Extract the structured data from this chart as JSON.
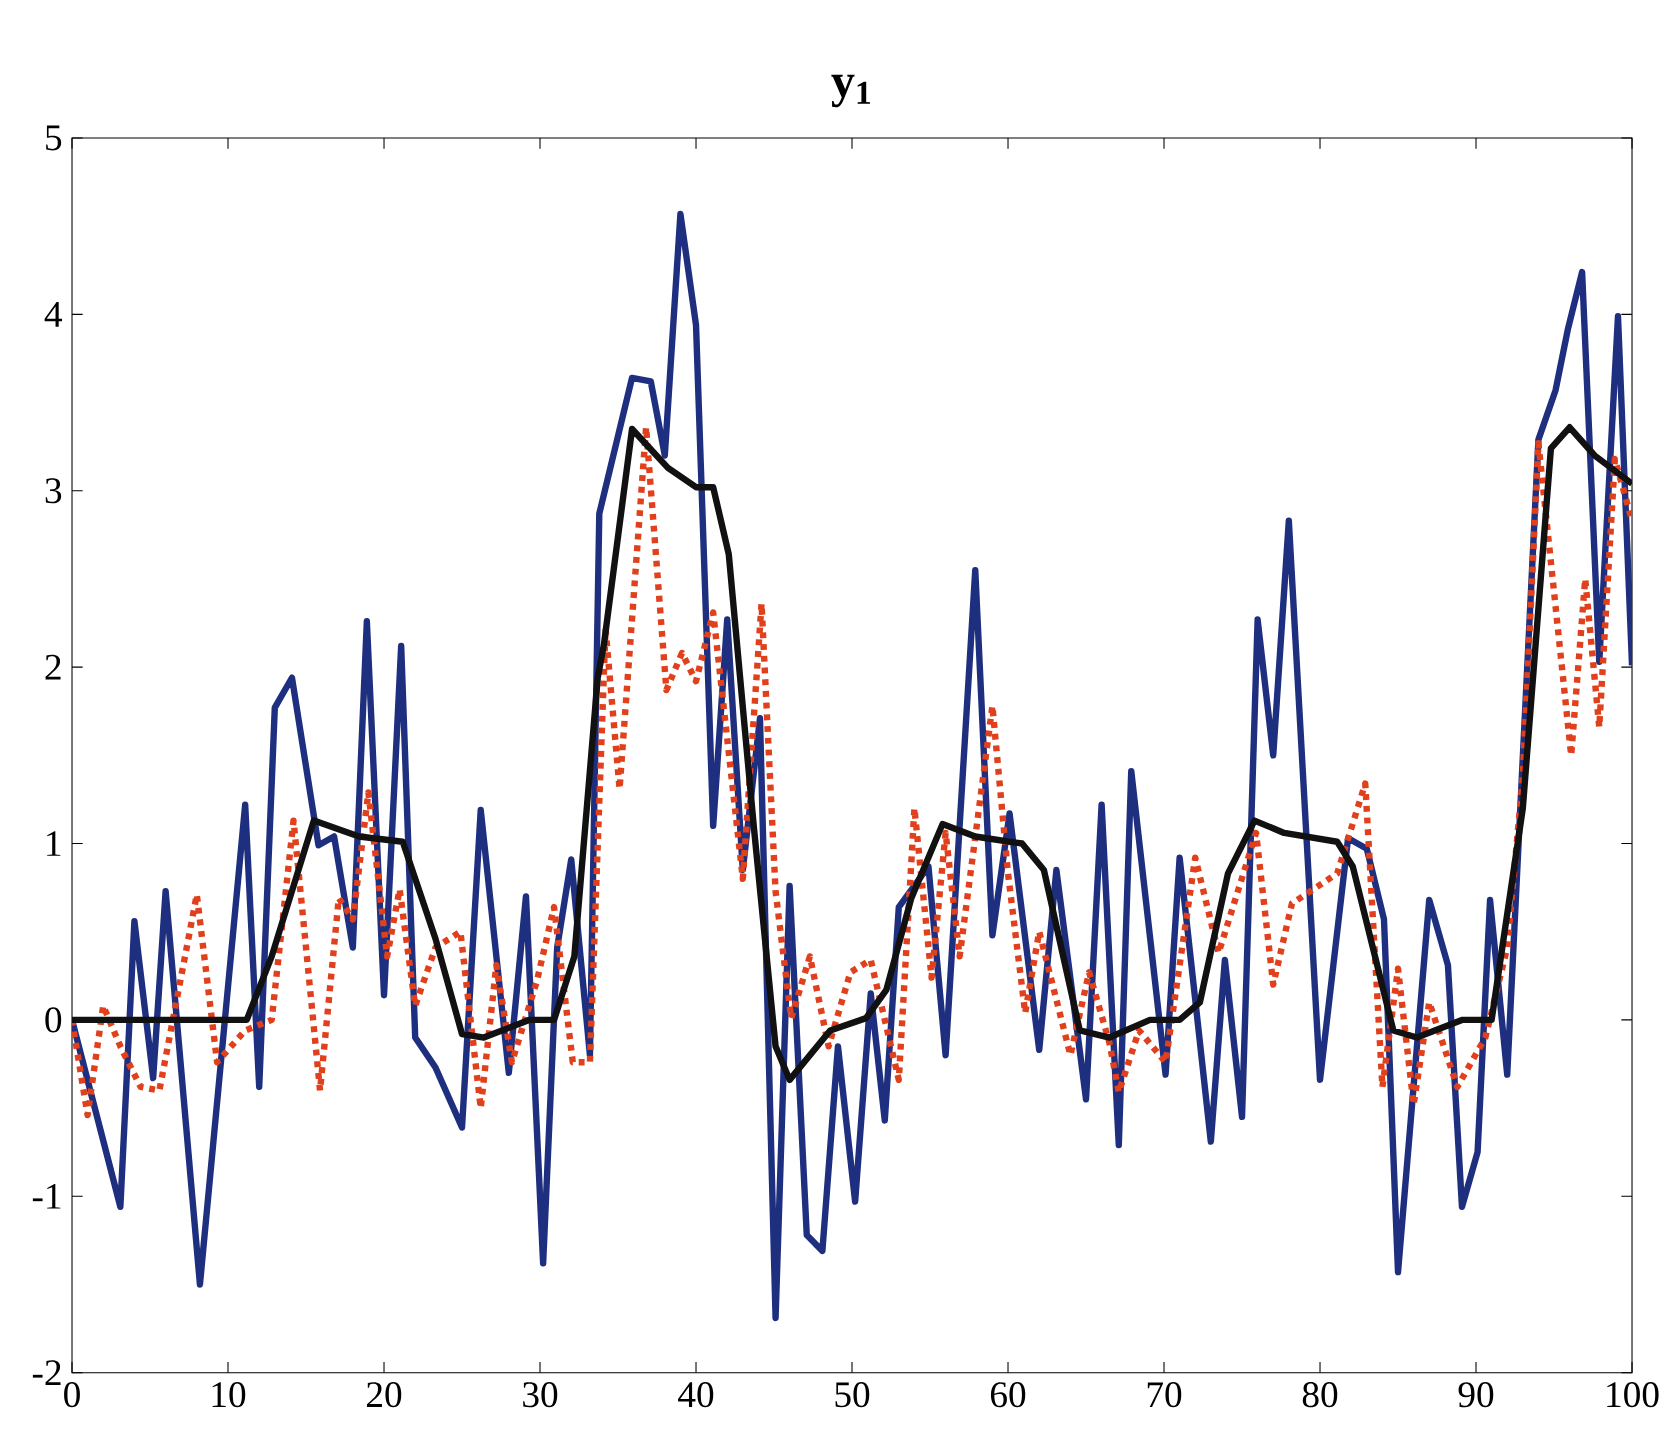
{
  "chart_data": {
    "type": "line",
    "title": "y$_{1}$",
    "xlim": [
      0,
      100
    ],
    "ylim": [
      -2,
      5
    ],
    "xticks": [
      0,
      10,
      20,
      30,
      40,
      50,
      60,
      70,
      80,
      90,
      100
    ],
    "yticks": [
      -2,
      -1,
      0,
      1,
      2,
      3,
      4,
      5
    ],
    "marker": "none",
    "series": [
      {
        "color": "#1f2f7f",
        "line_style": "solid",
        "x": [
          0,
          3.1,
          4,
          5.2,
          6,
          8.2,
          11.1,
          12,
          13,
          14.1,
          15.8,
          16.8,
          18,
          18.9,
          20,
          21.1,
          22,
          23.3,
          25,
          26.2,
          28,
          29.1,
          30.2,
          31.1,
          32,
          33.2,
          33.8,
          35.9,
          37.1,
          38,
          39,
          40,
          41.1,
          42,
          43,
          44.1,
          45.1,
          46,
          47.1,
          48.1,
          49.1,
          50.2,
          51.2,
          52.1,
          53,
          54.9,
          56,
          57.9,
          59,
          60.1,
          62,
          63.1,
          65,
          66,
          67.1,
          67.9,
          70.1,
          71,
          73,
          73.9,
          75,
          76,
          77,
          78,
          80,
          81.8,
          83,
          84.1,
          85,
          87,
          88.2,
          89.1,
          90.1,
          90.9,
          92,
          94,
          95.1,
          95.9,
          96.8,
          97.9,
          99.1,
          100
        ],
        "values": [
          0,
          -1.06,
          0.56,
          -0.33,
          0.73,
          -1.5,
          1.22,
          -0.38,
          1.77,
          1.94,
          0.99,
          1.04,
          0.41,
          2.26,
          0.14,
          2.12,
          -0.1,
          -0.27,
          -0.61,
          1.19,
          -0.3,
          0.7,
          -1.38,
          0.41,
          0.91,
          -0.2,
          2.87,
          3.64,
          3.62,
          3.2,
          4.57,
          3.94,
          1.1,
          2.27,
          0.85,
          1.71,
          -1.69,
          0.76,
          -1.22,
          -1.31,
          -0.15,
          -1.03,
          0.15,
          -0.57,
          0.64,
          0.87,
          -0.2,
          2.55,
          0.48,
          1.17,
          -0.17,
          0.85,
          -0.45,
          1.22,
          -0.71,
          1.41,
          -0.31,
          0.92,
          -0.69,
          0.34,
          -0.55,
          2.27,
          1.5,
          2.83,
          -0.34,
          1.03,
          0.97,
          0.57,
          -1.43,
          0.68,
          0.31,
          -1.06,
          -0.75,
          0.68,
          -0.31,
          3.29,
          3.57,
          3.92,
          4.24,
          2.03,
          3.99,
          2.01
        ]
      },
      {
        "color": "#e0401c",
        "line_style": "dotted",
        "x": [
          0,
          1,
          2,
          3.1,
          4.4,
          5.6,
          8,
          9.3,
          11.1,
          12.8,
          14.2,
          15.9,
          17.1,
          18,
          19,
          20.2,
          21,
          22,
          23.3,
          24.9,
          26.2,
          27.2,
          28.2,
          29.8,
          30.9,
          32.1,
          33.2,
          34.2,
          35.1,
          36.8,
          38.1,
          39.1,
          40,
          41.1,
          43,
          44.2,
          45.1,
          46.1,
          47.3,
          48.5,
          49.9,
          51.2,
          53,
          54,
          55.1,
          56,
          56.9,
          59,
          60,
          61.1,
          62,
          64,
          65.2,
          66.5,
          67.1,
          68.4,
          70.1,
          72,
          73.5,
          75.9,
          77,
          78.2,
          81.1,
          82.9,
          84,
          85,
          86,
          87,
          88.8,
          90.6,
          92,
          93,
          94,
          96.1,
          97,
          97.9,
          98.9,
          100
        ],
        "values": [
          0,
          -0.54,
          0.08,
          -0.15,
          -0.38,
          -0.4,
          0.71,
          -0.24,
          -0.06,
          0,
          1.13,
          -0.4,
          0.69,
          0.57,
          1.29,
          0.36,
          0.74,
          0.08,
          0.41,
          0.5,
          -0.5,
          0.31,
          -0.24,
          0.22,
          0.64,
          -0.24,
          -0.24,
          2.22,
          1.31,
          3.36,
          1.87,
          2.08,
          1.92,
          2.31,
          0.8,
          2.36,
          0.73,
          0.01,
          0.36,
          -0.15,
          0.27,
          0.34,
          -0.34,
          1.2,
          0.24,
          1.06,
          0.36,
          1.78,
          0.83,
          0.04,
          0.5,
          -0.2,
          0.27,
          -0.13,
          -0.41,
          -0.06,
          -0.24,
          0.92,
          0.38,
          1.06,
          0.2,
          0.66,
          0.83,
          1.34,
          -0.38,
          0.29,
          -0.48,
          0.1,
          -0.38,
          -0.1,
          0.41,
          1.38,
          3.27,
          1.5,
          2.5,
          1.66,
          3.18,
          2.83
        ]
      },
      {
        "color": "#111111",
        "line_style": "solid",
        "x": [
          0,
          11.2,
          12.8,
          15.5,
          18.4,
          21.2,
          23.3,
          25,
          26.4,
          29.3,
          30.9,
          32.2,
          33.7,
          34.1,
          35.9,
          38.2,
          40,
          41.1,
          42.1,
          43.7,
          45.1,
          46,
          48.6,
          50.9,
          52.2,
          53.8,
          55.8,
          57.9,
          60.9,
          62.3,
          64.6,
          66.5,
          69.1,
          71,
          72.3,
          74.1,
          75.8,
          77.7,
          81.1,
          82.1,
          84.7,
          86.2,
          89.1,
          91,
          93,
          94.8,
          96,
          97.6,
          100
        ],
        "values": [
          0,
          0,
          0.36,
          1.13,
          1.04,
          1.01,
          0.46,
          -0.08,
          -0.1,
          0,
          0,
          0.36,
          1.94,
          2.13,
          3.35,
          3.13,
          3.02,
          3.02,
          2.64,
          1.1,
          -0.15,
          -0.34,
          -0.06,
          0.01,
          0.17,
          0.69,
          1.11,
          1.04,
          1,
          0.85,
          -0.06,
          -0.1,
          0,
          0,
          0.1,
          0.83,
          1.13,
          1.06,
          1.01,
          0.87,
          -0.06,
          -0.1,
          0,
          0,
          1.2,
          3.24,
          3.36,
          3.2,
          3.04
        ]
      }
    ]
  }
}
